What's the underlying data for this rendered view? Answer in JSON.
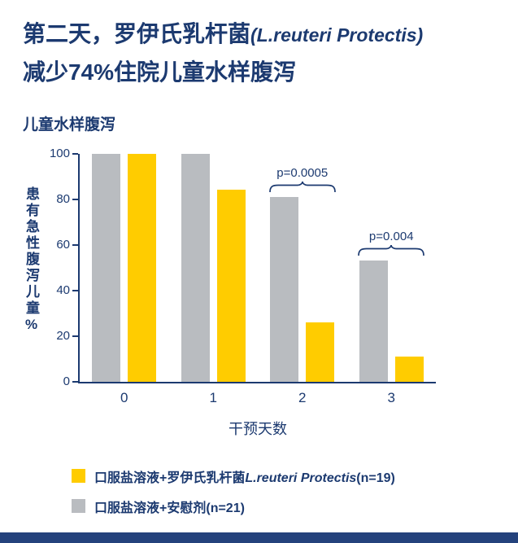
{
  "page": {
    "title_line1": "第二天，罗伊氏乳杆菌",
    "title_line1_em": "(L.reuteri Protectis)",
    "title_line2": "减少74%住院儿童水样腹泻",
    "chart_heading": "儿童水样腹泻"
  },
  "colors": {
    "navy": "#1c3a70",
    "yellow": "#ffcc00",
    "gray": "#b9bcc0"
  },
  "chart_data": {
    "type": "bar",
    "title": "儿童水样腹泻",
    "categories": [
      "0",
      "1",
      "2",
      "3"
    ],
    "series": [
      {
        "name": "口服盐溶液+安慰剂(n=21)",
        "color": "#b9bcc0",
        "values": [
          100,
          100,
          81,
          53
        ]
      },
      {
        "name": "口服盐溶液+罗伊氏乳杆菌L.reuteri Protectis(n=19)",
        "color": "#ffcc00",
        "values": [
          100,
          84,
          26,
          11
        ]
      }
    ],
    "ylabel": "患有急性腹泻儿童%",
    "xlabel": "干预天数",
    "yticks": [
      0,
      20,
      40,
      60,
      80,
      100
    ],
    "ylim": [
      0,
      100
    ],
    "grid": false,
    "legend_position": "bottom",
    "annotations": [
      {
        "category_index": 2,
        "label": "p=0.0005"
      },
      {
        "category_index": 3,
        "label": "p=0.004"
      }
    ]
  },
  "legend": {
    "items": [
      {
        "prefix": "口服盐溶液+罗伊氏乳杆菌",
        "emph": "L.reuteri Protectis",
        "suffix": "(n=19)",
        "color": "#ffcc00"
      },
      {
        "prefix": "口服盐溶液+安慰剂",
        "emph": "",
        "suffix": "(n=21)",
        "color": "#b9bcc0"
      }
    ]
  }
}
